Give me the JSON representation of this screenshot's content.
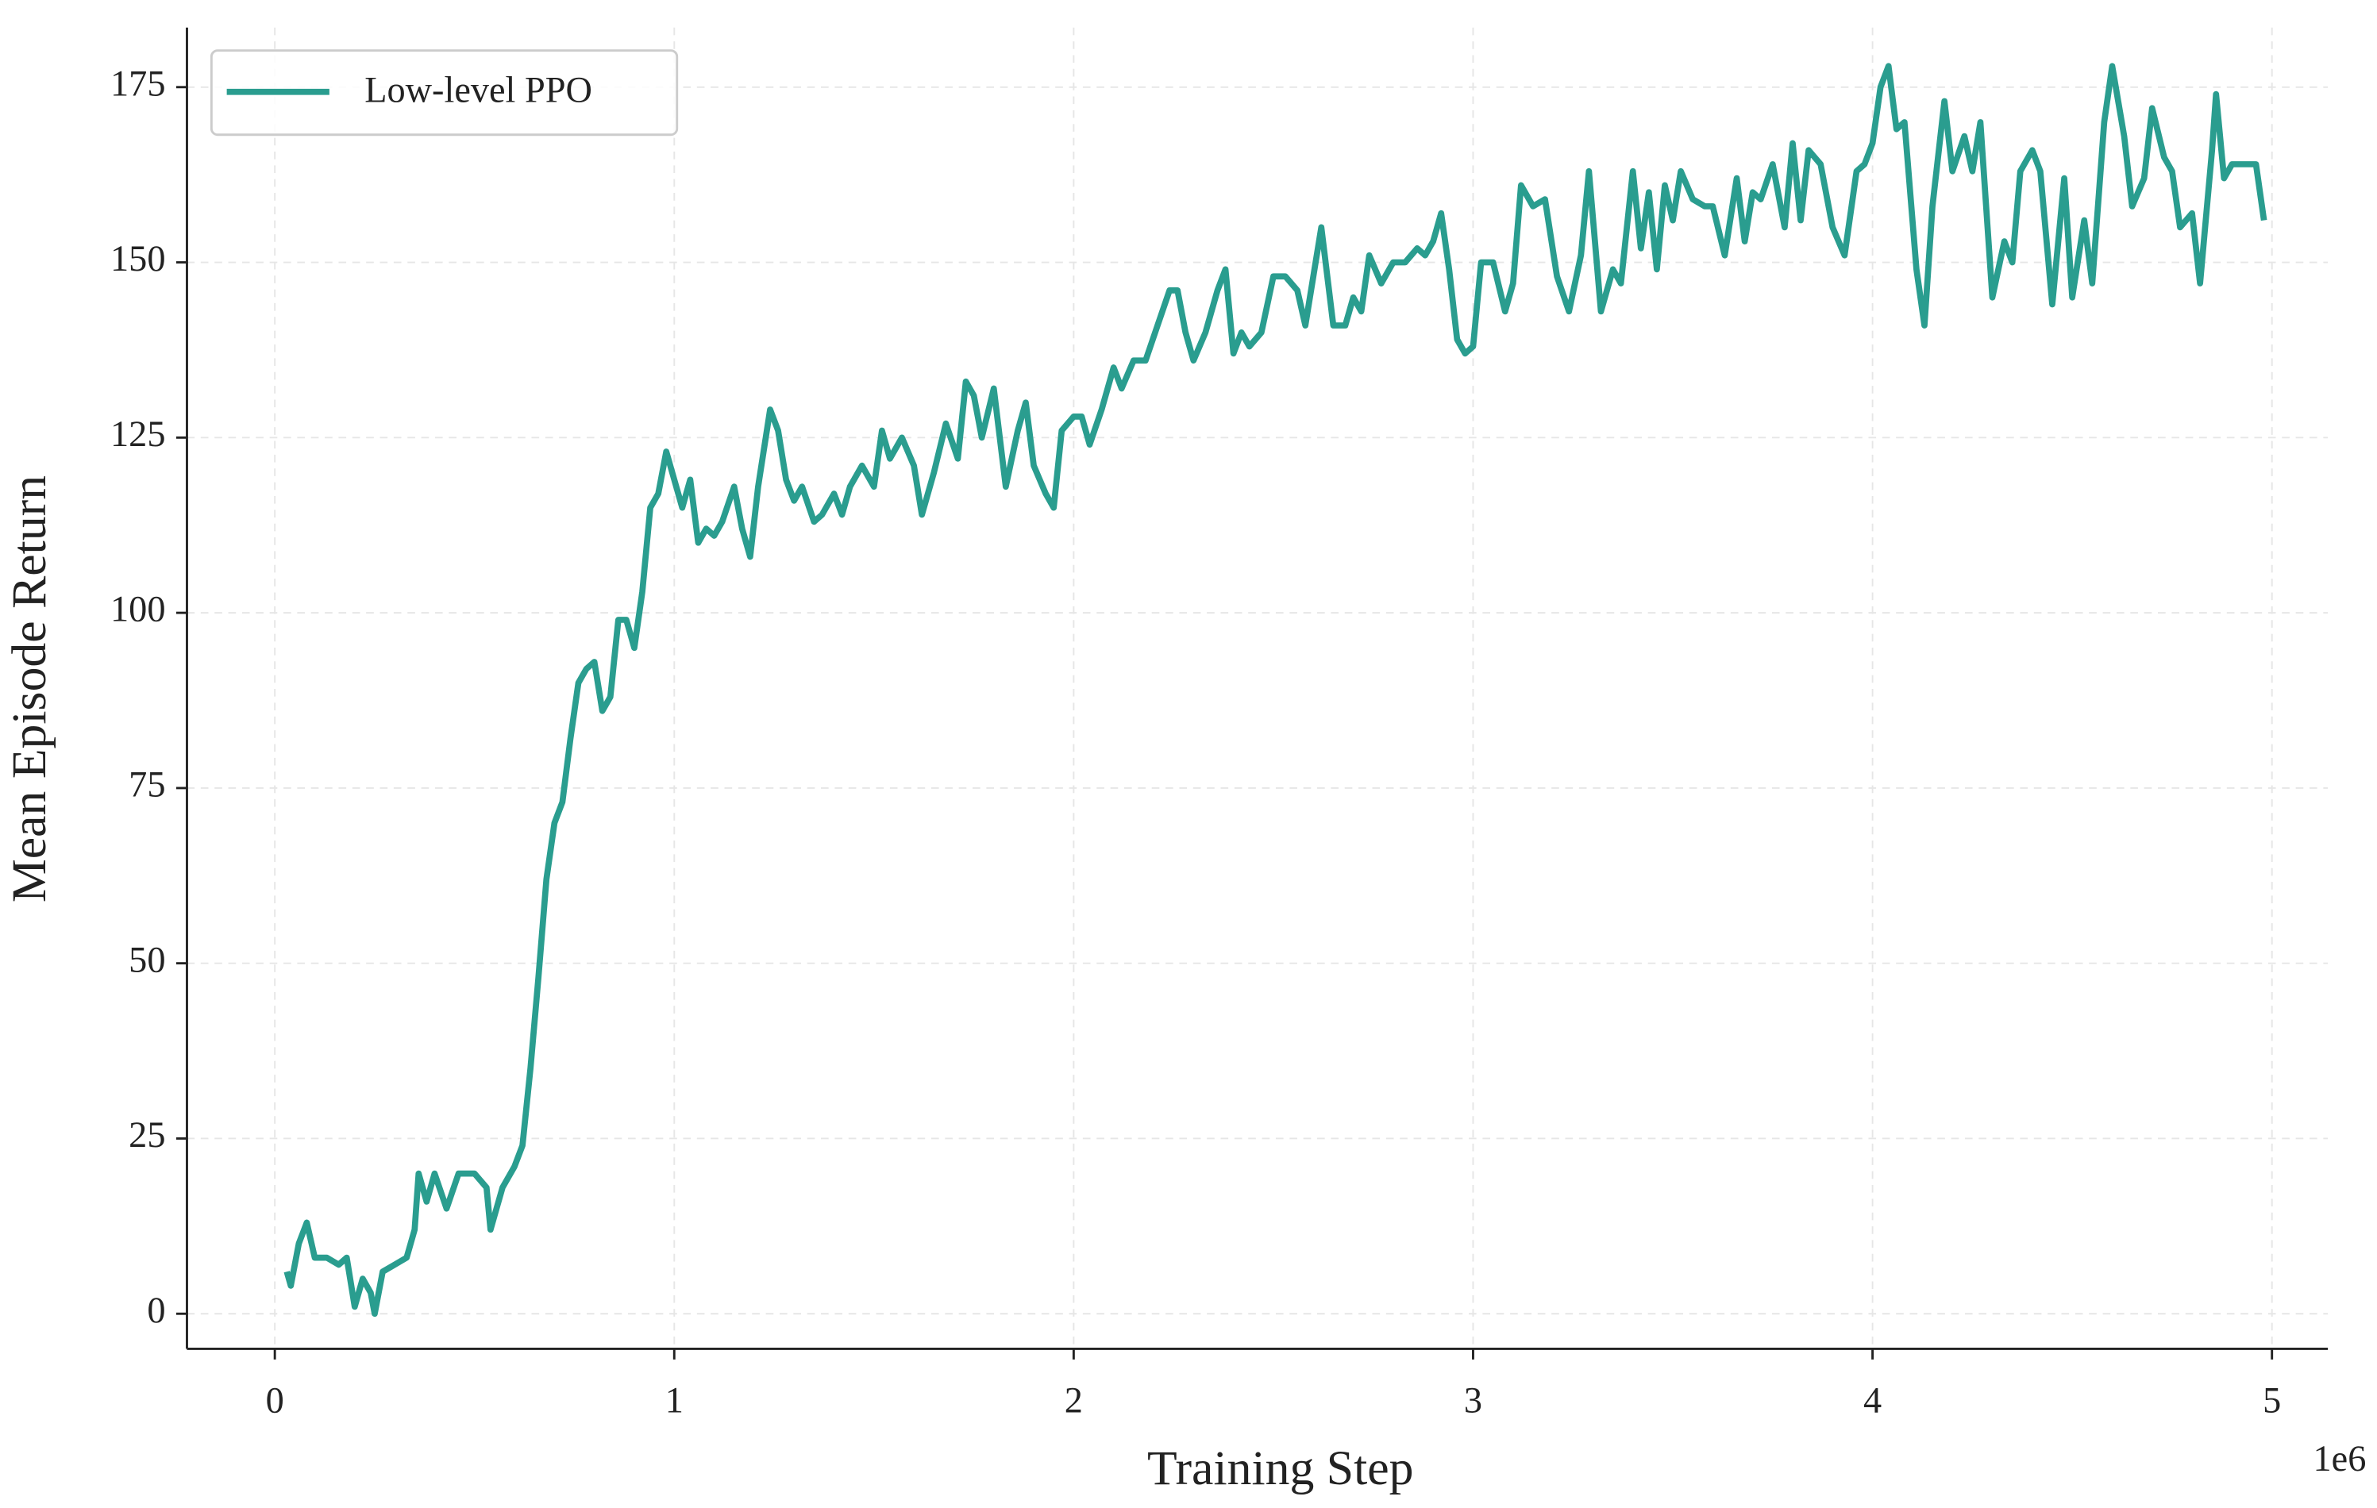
{
  "chart_data": {
    "type": "line",
    "xlabel": "Training Step",
    "ylabel": "Mean Episode Return",
    "x_offset_label": "1e6",
    "xlim": [
      -0.22,
      5.14
    ],
    "xticks": [
      0,
      1,
      2,
      3,
      4,
      5
    ],
    "ylim": [
      -5,
      183.5
    ],
    "yticks": [
      0,
      25,
      50,
      75,
      100,
      125,
      150,
      175
    ],
    "grid": true,
    "legend": "upper left",
    "x": [
      0.03,
      0.04,
      0.06,
      0.08,
      0.1,
      0.13,
      0.16,
      0.18,
      0.2,
      0.22,
      0.24,
      0.25,
      0.27,
      0.3,
      0.33,
      0.35,
      0.36,
      0.38,
      0.4,
      0.43,
      0.46,
      0.5,
      0.53,
      0.54,
      0.57,
      0.6,
      0.62,
      0.64,
      0.66,
      0.68,
      0.7,
      0.72,
      0.74,
      0.76,
      0.78,
      0.8,
      0.82,
      0.84,
      0.86,
      0.88,
      0.9,
      0.92,
      0.94,
      0.96,
      0.98,
      1.0,
      1.02,
      1.04,
      1.06,
      1.08,
      1.1,
      1.12,
      1.15,
      1.17,
      1.19,
      1.21,
      1.24,
      1.26,
      1.28,
      1.3,
      1.32,
      1.35,
      1.37,
      1.4,
      1.42,
      1.44,
      1.47,
      1.5,
      1.52,
      1.54,
      1.57,
      1.6,
      1.62,
      1.65,
      1.68,
      1.71,
      1.73,
      1.75,
      1.77,
      1.8,
      1.83,
      1.86,
      1.88,
      1.9,
      1.93,
      1.95,
      1.97,
      2.0,
      2.02,
      2.04,
      2.07,
      2.1,
      2.12,
      2.15,
      2.18,
      2.21,
      2.24,
      2.26,
      2.28,
      2.3,
      2.33,
      2.36,
      2.38,
      2.4,
      2.42,
      2.44,
      2.47,
      2.5,
      2.53,
      2.56,
      2.58,
      2.6,
      2.62,
      2.65,
      2.68,
      2.7,
      2.72,
      2.74,
      2.77,
      2.8,
      2.83,
      2.86,
      2.88,
      2.9,
      2.92,
      2.94,
      2.96,
      2.98,
      3.0,
      3.02,
      3.05,
      3.08,
      3.1,
      3.12,
      3.15,
      3.18,
      3.21,
      3.24,
      3.27,
      3.29,
      3.32,
      3.35,
      3.37,
      3.4,
      3.42,
      3.44,
      3.46,
      3.48,
      3.5,
      3.52,
      3.55,
      3.58,
      3.6,
      3.63,
      3.66,
      3.68,
      3.7,
      3.72,
      3.75,
      3.78,
      3.8,
      3.82,
      3.84,
      3.87,
      3.9,
      3.93,
      3.96,
      3.98,
      4.0,
      4.02,
      4.04,
      4.06,
      4.08,
      4.11,
      4.13,
      4.15,
      4.18,
      4.2,
      4.23,
      4.25,
      4.27,
      4.3,
      4.33,
      4.35,
      4.37,
      4.4,
      4.42,
      4.45,
      4.48,
      4.5,
      4.53,
      4.55,
      4.58,
      4.6,
      4.63,
      4.65,
      4.68,
      4.7,
      4.73,
      4.75,
      4.77,
      4.8,
      4.82,
      4.85,
      4.86,
      4.88,
      4.9,
      4.93,
      4.96,
      4.98
    ],
    "series": [
      {
        "name": "Low-level PPO",
        "color": "#2a9d8f",
        "values": [
          6,
          4,
          10,
          13,
          8,
          8,
          7,
          8,
          1,
          5,
          3,
          0,
          6,
          7,
          8,
          12,
          20,
          16,
          20,
          15,
          20,
          20,
          18,
          12,
          18,
          21,
          24,
          35,
          48,
          62,
          70,
          73,
          82,
          90,
          92,
          93,
          86,
          88,
          99,
          99,
          95,
          103,
          115,
          117,
          123,
          119,
          115,
          119,
          110,
          112,
          111,
          113,
          118,
          112,
          108,
          118,
          129,
          126,
          119,
          116,
          118,
          113,
          114,
          117,
          114,
          118,
          121,
          118,
          126,
          122,
          125,
          121,
          114,
          120,
          127,
          122,
          133,
          131,
          125,
          132,
          118,
          126,
          130,
          121,
          117,
          115,
          126,
          128,
          128,
          124,
          129,
          135,
          132,
          136,
          136,
          141,
          146,
          146,
          140,
          136,
          140,
          146,
          149,
          137,
          140,
          138,
          140,
          148,
          148,
          146,
          141,
          148,
          155,
          141,
          141,
          145,
          143,
          151,
          147,
          150,
          150,
          152,
          151,
          153,
          157,
          149,
          139,
          137,
          138,
          150,
          150,
          143,
          147,
          161,
          158,
          159,
          148,
          143,
          151,
          163,
          143,
          149,
          147,
          163,
          152,
          160,
          149,
          161,
          156,
          163,
          159,
          158,
          158,
          151,
          162,
          153,
          160,
          159,
          164,
          155,
          167,
          156,
          166,
          164,
          155,
          151,
          163,
          164,
          167,
          175,
          178,
          169,
          170,
          149,
          141,
          158,
          173,
          163,
          168,
          163,
          170,
          145,
          153,
          150,
          163,
          166,
          163,
          144,
          162,
          145,
          156,
          147,
          170,
          178,
          168,
          158,
          162,
          172,
          165,
          163,
          155,
          157,
          147,
          166,
          174,
          162,
          164,
          164,
          164,
          156
        ]
      }
    ]
  }
}
